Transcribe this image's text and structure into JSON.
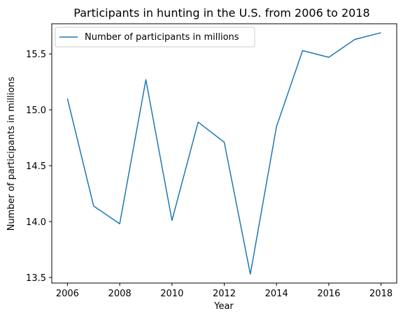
{
  "chart_data": {
    "type": "line",
    "title": "Participants in hunting in the U.S. from 2006 to 2018",
    "xlabel": "Year",
    "ylabel": "Number of participants in millions",
    "x": [
      2006,
      2007,
      2008,
      2009,
      2010,
      2011,
      2012,
      2013,
      2014,
      2015,
      2016,
      2017,
      2018
    ],
    "series": [
      {
        "name": "Number of participants in millions",
        "color": "#1f77b4",
        "values": [
          15.1,
          14.14,
          13.98,
          15.27,
          14.01,
          14.89,
          14.71,
          13.53,
          14.85,
          15.53,
          15.47,
          15.63,
          15.69
        ]
      }
    ],
    "xlim": [
      2005.4,
      2018.6
    ],
    "ylim": [
      13.45,
      15.77
    ],
    "xticks": [
      "2006",
      "2008",
      "2010",
      "2012",
      "2014",
      "2016",
      "2018"
    ],
    "yticks": [
      "13.5",
      "14.0",
      "14.5",
      "15.0",
      "15.5"
    ],
    "grid": false,
    "legend": "upper left"
  }
}
